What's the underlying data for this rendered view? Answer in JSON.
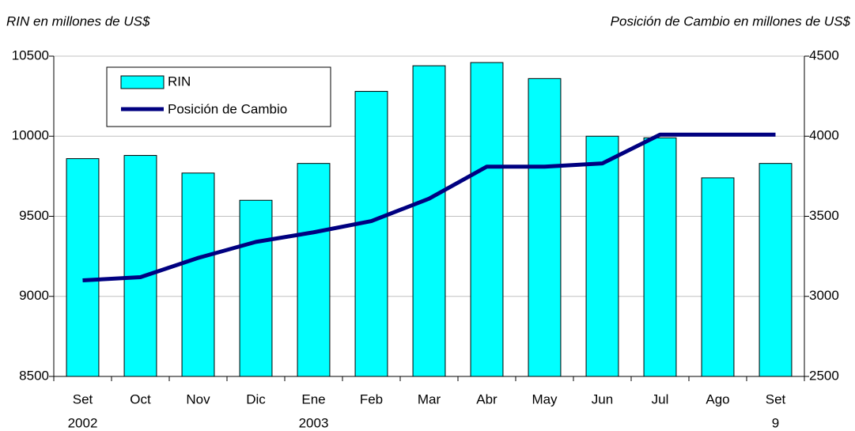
{
  "chart_data": {
    "type": "bar_line",
    "y_axis_label": "RIN en millones de US$",
    "y2_axis_label": "Posición de Cambio en millones de US$",
    "categories": [
      "Set",
      "Oct",
      "Nov",
      "Dic",
      "Ene",
      "Feb",
      "Mar",
      "Abr",
      "May",
      "Jun",
      "Jul",
      "Ago",
      "Set"
    ],
    "category_sublabels": [
      "2002",
      null,
      null,
      null,
      "2003",
      null,
      null,
      null,
      null,
      null,
      null,
      null,
      "9"
    ],
    "series": [
      {
        "name": "RIN",
        "type": "bar",
        "color": "#00ffff",
        "values": [
          9860,
          9880,
          9770,
          9600,
          9830,
          10280,
          10440,
          10460,
          10360,
          10000,
          9990,
          9740,
          9830
        ]
      },
      {
        "name": "Posición de Cambio",
        "type": "line",
        "axis": "y2",
        "color": "#000080",
        "values": [
          3100,
          3120,
          3240,
          3340,
          3400,
          3470,
          3610,
          3810,
          3810,
          3830,
          4010,
          4010,
          4010
        ]
      }
    ],
    "ylim": [
      8500,
      10500
    ],
    "yticks": [
      8500,
      9000,
      9500,
      10000,
      10500
    ],
    "y2lim": [
      2500,
      4500
    ],
    "y2ticks": [
      2500,
      3000,
      3500,
      4000,
      4500
    ],
    "grid": true,
    "legend": "upper left"
  }
}
